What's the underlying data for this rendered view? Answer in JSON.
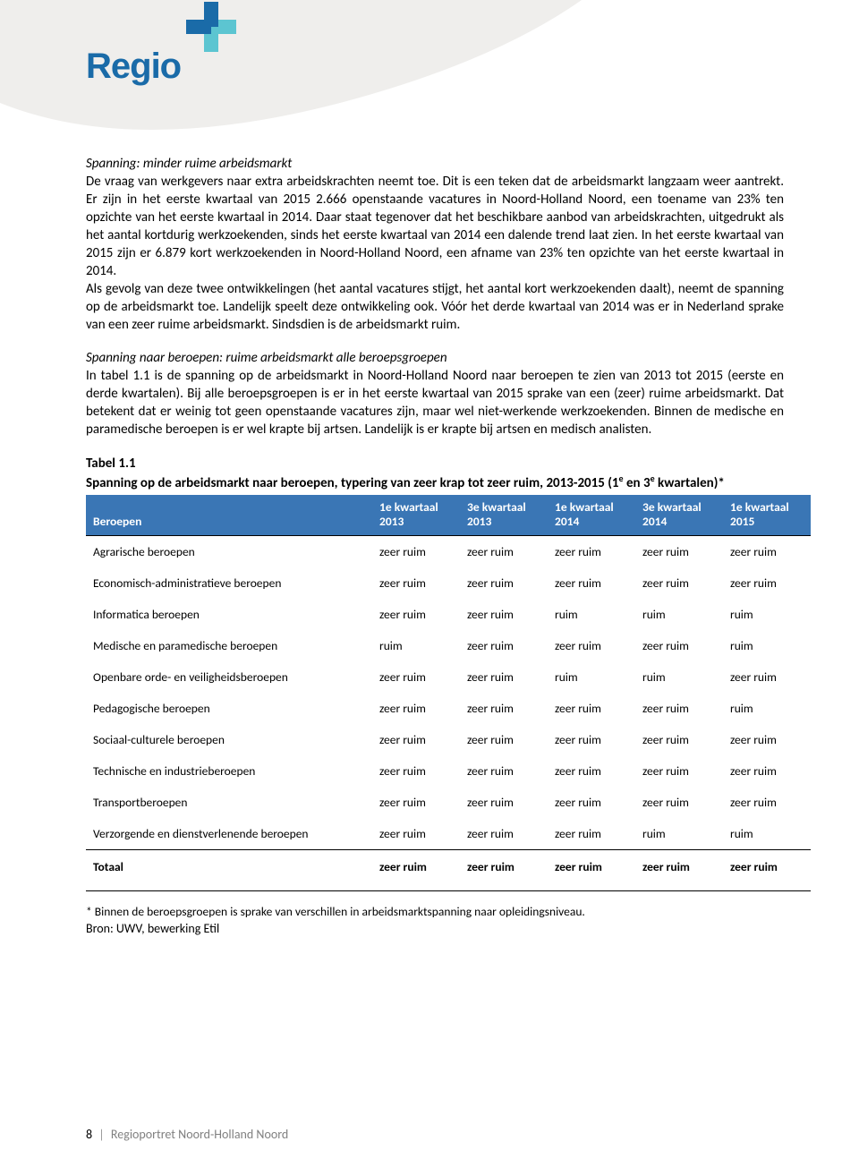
{
  "logo": {
    "text": "Regio",
    "text_color": "#1a6ba8",
    "plus_color_dark": "#1a6ba8",
    "plus_color_light": "#5cc5d1"
  },
  "curve_color": "#efeeec",
  "section1": {
    "heading": "Spanning: minder ruime arbeidsmarkt",
    "body": "De vraag van werkgevers naar extra arbeidskrachten neemt toe. Dit is een teken dat de arbeidsmarkt langzaam weer aantrekt. Er zijn in het eerste kwartaal van 2015 2.666 openstaande vacatures in Noord-Holland Noord, een toename van 23% ten opzichte van het eerste kwartaal in 2014. Daar staat tegenover dat het beschikbare aanbod van arbeidskrachten, uitgedrukt als het aantal kortdurig werkzoekenden, sinds het eerste kwartaal van 2014 een dalende trend laat zien. In het eerste kwartaal van 2015 zijn er 6.879 kort werkzoekenden in Noord-Holland Noord, een afname van 23% ten opzichte van het eerste kwartaal in 2014.\nAls gevolg van deze twee ontwikkelingen (het aantal vacatures stijgt, het aantal kort werkzoekenden daalt), neemt de spanning op de arbeidsmarkt toe. Landelijk speelt deze ontwikkeling ook. Vóór het derde kwartaal van 2014 was er in Nederland sprake van een zeer ruime arbeidsmarkt. Sindsdien is de arbeidsmarkt ruim."
  },
  "section2": {
    "heading": "Spanning naar beroepen: ruime arbeidsmarkt alle beroepsgroepen",
    "body": "In tabel 1.1 is de spanning op de arbeidsmarkt in Noord-Holland Noord naar beroepen te zien van 2013 tot 2015 (eerste en derde kwartalen). Bij alle beroepsgroepen is er in het eerste kwartaal van 2015 sprake van een (zeer) ruime arbeidsmarkt. Dat betekent dat er weinig tot geen openstaande vacatures zijn, maar wel niet-werkende werkzoekenden. Binnen de medische en paramedische beroepen is er wel krapte bij artsen. Landelijk is er krapte bij artsen en medisch analisten."
  },
  "table": {
    "label": "Tabel 1.1",
    "caption_pre": "Spanning op de arbeidsmarkt naar beroepen, typering van zeer krap tot zeer ruim, 2013-2015 (1",
    "caption_mid": " en 3",
    "caption_suf": " kwartalen)*",
    "sup": "e",
    "header_bg": "#3a76b5",
    "header_fg": "#ffffff",
    "columns": [
      "Beroepen",
      "1e kwartaal 2013",
      "3e kwartaal 2013",
      "1e kwartaal 2014",
      "3e kwartaal 2014",
      "1e kwartaal 2015"
    ],
    "rows": [
      [
        "Agrarische beroepen",
        "zeer ruim",
        "zeer ruim",
        "zeer ruim",
        "zeer ruim",
        "zeer ruim"
      ],
      [
        "Economisch-administratieve beroepen",
        "zeer ruim",
        "zeer ruim",
        "zeer ruim",
        "zeer ruim",
        "zeer ruim"
      ],
      [
        "Informatica beroepen",
        "zeer ruim",
        "zeer ruim",
        "ruim",
        "ruim",
        "ruim"
      ],
      [
        "Medische en paramedische beroepen",
        "ruim",
        "zeer ruim",
        "zeer ruim",
        "zeer ruim",
        "ruim"
      ],
      [
        "Openbare orde- en veiligheidsberoepen",
        "zeer ruim",
        "zeer ruim",
        "ruim",
        "ruim",
        "zeer ruim"
      ],
      [
        "Pedagogische beroepen",
        "zeer ruim",
        "zeer ruim",
        "zeer ruim",
        "zeer ruim",
        "ruim"
      ],
      [
        "Sociaal-culturele beroepen",
        "zeer ruim",
        "zeer ruim",
        "zeer ruim",
        "zeer ruim",
        "zeer ruim"
      ],
      [
        "Technische en industrieberoepen",
        "zeer ruim",
        "zeer ruim",
        "zeer ruim",
        "zeer ruim",
        "zeer ruim"
      ],
      [
        "Transportberoepen",
        "zeer ruim",
        "zeer ruim",
        "zeer ruim",
        "zeer ruim",
        "zeer ruim"
      ],
      [
        "Verzorgende en dienstverlenende beroepen",
        "zeer ruim",
        "zeer ruim",
        "zeer ruim",
        "ruim",
        "ruim"
      ]
    ],
    "total_row": [
      "Totaal",
      "zeer ruim",
      "zeer ruim",
      "zeer ruim",
      "zeer ruim",
      "zeer ruim"
    ],
    "note": "* Binnen de beroepsgroepen is sprake van verschillen in arbeidsmarktspanning naar opleidingsniveau.",
    "source": "Bron: UWV, bewerking Etil"
  },
  "footer": {
    "page": "8",
    "title": "Regioportret Noord-Holland Noord"
  }
}
